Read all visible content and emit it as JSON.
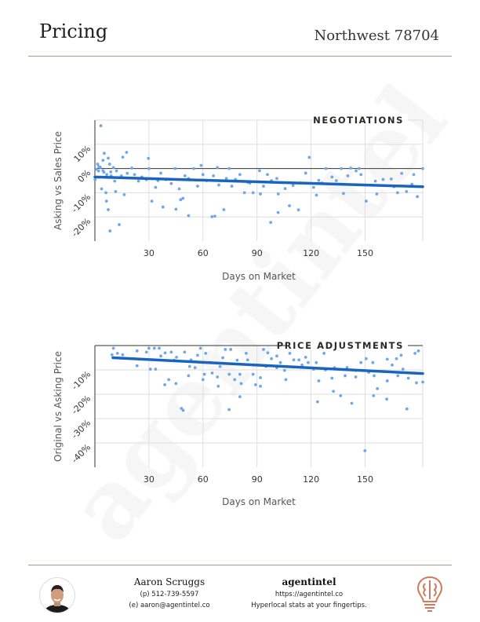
{
  "header": {
    "title": "Pricing",
    "area": "Northwest 78704"
  },
  "watermark": "agentintel",
  "colors": {
    "point": "#6fa8e8",
    "trend": "#1a64bf",
    "grid": "#dedede",
    "rule": "#a39e8c",
    "logo": "#d27a5c"
  },
  "chart_data": [
    {
      "type": "scatter",
      "title": "NEGOTIATIONS",
      "xlabel": "Days on Market",
      "ylabel": "Asking vs Sales Price",
      "xlim": [
        0,
        182
      ],
      "ylim": [
        -30,
        20
      ],
      "xticks": [
        30,
        60,
        90,
        120,
        150
      ],
      "xtick_labels": [
        "30",
        "60",
        "90",
        "120",
        "150"
      ],
      "yticks": [
        10,
        0,
        -10,
        -20
      ],
      "ytick_labels": [
        "10%",
        "0%",
        "-10%",
        "-20%"
      ],
      "grid": true,
      "trend": {
        "x": [
          0,
          182
        ],
        "y": [
          -3.5,
          -7.5
        ]
      },
      "points": [
        [
          3.3,
          17.7
        ],
        [
          5.2,
          6.3
        ],
        [
          17.6,
          6.7
        ],
        [
          29.7,
          4.2
        ],
        [
          119,
          4.6
        ],
        [
          59,
          1.3
        ],
        [
          7.4,
          4.3
        ],
        [
          15.5,
          4.7
        ],
        [
          8.4,
          -25.8
        ],
        [
          13.5,
          -23.2
        ],
        [
          6.4,
          -13.5
        ],
        [
          7.4,
          -17
        ],
        [
          52,
          -19.5
        ],
        [
          65,
          -19.9
        ],
        [
          66.6,
          -19.7
        ],
        [
          71.6,
          -17
        ],
        [
          97.6,
          -22.3
        ],
        [
          101.7,
          -18.2
        ],
        [
          113,
          -17.1
        ],
        [
          108,
          -15.4
        ],
        [
          150.6,
          -13.5
        ],
        [
          179,
          -11.6
        ],
        [
          45,
          -16.8
        ],
        [
          37.8,
          -15.9
        ],
        [
          31.6,
          -13.5
        ],
        [
          16.3,
          -10.8
        ],
        [
          11.5,
          -9.5
        ],
        [
          47.6,
          -12.9
        ],
        [
          48.9,
          -12.3
        ],
        [
          83,
          -10
        ],
        [
          87.8,
          -10
        ],
        [
          91.9,
          -10.5
        ],
        [
          101.8,
          -10.5
        ],
        [
          123,
          -11
        ],
        [
          138,
          -10.3
        ],
        [
          156.5,
          -10.5
        ],
        [
          168,
          -10
        ],
        [
          173,
          -9.5
        ],
        [
          182,
          0
        ],
        [
          146.7,
          0
        ],
        [
          142,
          0.2
        ],
        [
          136.8,
          0
        ],
        [
          128.3,
          0
        ],
        [
          91.4,
          -0.9
        ],
        [
          74.6,
          0
        ],
        [
          68,
          0.4
        ],
        [
          54.9,
          0
        ],
        [
          44.6,
          0
        ],
        [
          30,
          0
        ],
        [
          20.5,
          0.2
        ],
        [
          177,
          -2.5
        ],
        [
          170.3,
          -2
        ],
        [
          164.5,
          -4.3
        ],
        [
          155.7,
          -5.2
        ],
        [
          147.7,
          -2.5
        ],
        [
          140.4,
          -3
        ],
        [
          131.6,
          -3.5
        ],
        [
          124.3,
          -4.9
        ],
        [
          121.4,
          -7.8
        ],
        [
          117,
          -1.9
        ],
        [
          114,
          -6
        ],
        [
          105.6,
          -8.3
        ],
        [
          101,
          -4.1
        ],
        [
          95.8,
          -2.5
        ],
        [
          93.6,
          -7.3
        ],
        [
          84.8,
          -5.7
        ],
        [
          80.5,
          -2.5
        ],
        [
          76,
          -7.3
        ],
        [
          73,
          -4.1
        ],
        [
          68.8,
          -6.8
        ],
        [
          65.8,
          -3
        ],
        [
          60,
          -2.5
        ],
        [
          57,
          -7.3
        ],
        [
          52,
          -4.1
        ],
        [
          46.8,
          -8.4
        ],
        [
          42.4,
          -6.2
        ],
        [
          39.5,
          -4.6
        ],
        [
          36.6,
          -1.9
        ],
        [
          33.7,
          -7.8
        ],
        [
          28.6,
          -4.6
        ],
        [
          24.2,
          -5.2
        ],
        [
          22,
          -2.5
        ],
        [
          14.7,
          -3
        ],
        [
          11,
          -5.2
        ],
        [
          8.8,
          -1.4
        ],
        [
          6.6,
          -2.5
        ],
        [
          4.5,
          -0.9
        ],
        [
          2.2,
          0.8
        ],
        [
          0.8,
          -0.3
        ],
        [
          3.7,
          -8.4
        ],
        [
          6.1,
          -10
        ],
        [
          0.1,
          -4.6
        ],
        [
          8.2,
          1.8
        ],
        [
          10.3,
          0.4
        ],
        [
          1.5,
          1.8
        ],
        [
          4.5,
          3.4
        ],
        [
          2,
          -1
        ],
        [
          3,
          0.5
        ],
        [
          5,
          -1.5
        ],
        [
          9,
          -3
        ],
        [
          12,
          -1
        ],
        [
          18,
          -2
        ],
        [
          26,
          -3.5
        ],
        [
          35,
          -5
        ],
        [
          50,
          -3
        ],
        [
          62,
          -5
        ],
        [
          78,
          -4.5
        ],
        [
          86,
          -6
        ],
        [
          98,
          -5
        ],
        [
          110,
          -7
        ],
        [
          126,
          -6
        ],
        [
          134,
          -5
        ],
        [
          145,
          -1
        ],
        [
          160,
          -4.5
        ],
        [
          166,
          -7.5
        ],
        [
          176,
          -6.5
        ]
      ]
    },
    {
      "type": "scatter",
      "title": "PRICE ADJUSTMENTS",
      "xlabel": "Days on Market",
      "ylabel": "Original vs Asking Price",
      "xlim": [
        0,
        182
      ],
      "ylim": [
        -50,
        0
      ],
      "xticks": [
        30,
        60,
        90,
        120,
        150
      ],
      "xtick_labels": [
        "30",
        "60",
        "90",
        "120",
        "150"
      ],
      "yticks": [
        -10,
        -20,
        -30,
        -40
      ],
      "ytick_labels": [
        "-10%",
        "-20%",
        "-30%",
        "-40%"
      ],
      "grid": true,
      "trend": {
        "x": [
          10,
          182
        ],
        "y": [
          -5,
          -11.5
        ]
      },
      "points": [
        [
          10.3,
          -1.1
        ],
        [
          9.5,
          -3.8
        ],
        [
          12.5,
          -3.2
        ],
        [
          15.4,
          -3.8
        ],
        [
          23.4,
          -2.2
        ],
        [
          23.4,
          -8.3
        ],
        [
          28.6,
          -2.7
        ],
        [
          30,
          -1.1
        ],
        [
          30.8,
          -9.7
        ],
        [
          33.7,
          -9.7
        ],
        [
          33,
          -1.1
        ],
        [
          35.7,
          -1.1
        ],
        [
          36.6,
          -4.3
        ],
        [
          38.8,
          -16.1
        ],
        [
          41,
          -14
        ],
        [
          42.4,
          -2.7
        ],
        [
          45,
          -15.6
        ],
        [
          45.3,
          -4.8
        ],
        [
          48,
          -25.8
        ],
        [
          49,
          -26.6
        ],
        [
          49.8,
          -2.7
        ],
        [
          52,
          -12.4
        ],
        [
          52.6,
          -8.6
        ],
        [
          53.4,
          -5.9
        ],
        [
          55.6,
          -9.1
        ],
        [
          58.6,
          -1.1
        ],
        [
          60,
          -14
        ],
        [
          60.8,
          -11.8
        ],
        [
          61.5,
          -3.2
        ],
        [
          65.1,
          -11.3
        ],
        [
          68,
          -12.9
        ],
        [
          68.5,
          -16.7
        ],
        [
          69.5,
          -8.6
        ],
        [
          72.4,
          -1.6
        ],
        [
          74.5,
          -26.3
        ],
        [
          74.6,
          -11.8
        ],
        [
          75.4,
          -1.6
        ],
        [
          77.6,
          -14
        ],
        [
          80.5,
          -11.8
        ],
        [
          80.5,
          -21
        ],
        [
          81.2,
          -15.6
        ],
        [
          84,
          -3.2
        ],
        [
          84.8,
          -5.9
        ],
        [
          87.8,
          -11.8
        ],
        [
          89.2,
          -16.1
        ],
        [
          91.9,
          -13.2
        ],
        [
          91.9,
          -16.7
        ],
        [
          93.6,
          -1.6
        ],
        [
          98,
          -5.4
        ],
        [
          101,
          -4.3
        ],
        [
          105.3,
          -10.2
        ],
        [
          106,
          -14
        ],
        [
          108.2,
          -3.2
        ],
        [
          113.3,
          -5.9
        ],
        [
          118.4,
          -7
        ],
        [
          121.4,
          -9.7
        ],
        [
          123.6,
          -23.1
        ],
        [
          124.3,
          -14.5
        ],
        [
          127.2,
          -3.2
        ],
        [
          131.6,
          -13.4
        ],
        [
          132.4,
          -18.8
        ],
        [
          136.4,
          -20.6
        ],
        [
          138.9,
          -12.4
        ],
        [
          142.6,
          -23.7
        ],
        [
          144.8,
          -12.9
        ],
        [
          147.7,
          -7
        ],
        [
          149.9,
          -43.2
        ],
        [
          150.6,
          -5.4
        ],
        [
          154.7,
          -20.6
        ],
        [
          155,
          -12.4
        ],
        [
          156.8,
          -17.7
        ],
        [
          162,
          -22
        ],
        [
          162.3,
          -14.5
        ],
        [
          167.4,
          -5.4
        ],
        [
          168.2,
          -12.4
        ],
        [
          171,
          -9.7
        ],
        [
          173.2,
          -26
        ],
        [
          174,
          -13.4
        ],
        [
          177.7,
          -3.2
        ],
        [
          178.5,
          -15.3
        ],
        [
          179.6,
          -2.2
        ],
        [
          182,
          -15
        ],
        [
          162.3,
          -5.6
        ],
        [
          154.3,
          -7
        ],
        [
          144.8,
          -10.2
        ],
        [
          133,
          -9.1
        ],
        [
          122.9,
          -7
        ],
        [
          117,
          -4.8
        ],
        [
          110.4,
          -5.9
        ],
        [
          101,
          -9.1
        ],
        [
          95,
          -8.6
        ],
        [
          39,
          -3
        ],
        [
          44,
          -6
        ],
        [
          57,
          -4
        ],
        [
          64,
          -7
        ],
        [
          71,
          -5
        ],
        [
          79,
          -6
        ],
        [
          88,
          -8
        ],
        [
          96,
          -3
        ],
        [
          103,
          -7
        ],
        [
          115,
          -8
        ],
        [
          128,
          -10
        ],
        [
          140,
          -9
        ],
        [
          152,
          -11
        ],
        [
          165,
          -8
        ],
        [
          170,
          -4
        ]
      ]
    }
  ],
  "footer": {
    "agent_name": "Aaron Scruggs",
    "phone": "(p) 512-739-5597",
    "email": "(e) aaron@agentintel.co",
    "brand": "agentintel",
    "url": "https://agentintel.co",
    "tagline": "Hyperlocal stats at your fingertips."
  }
}
